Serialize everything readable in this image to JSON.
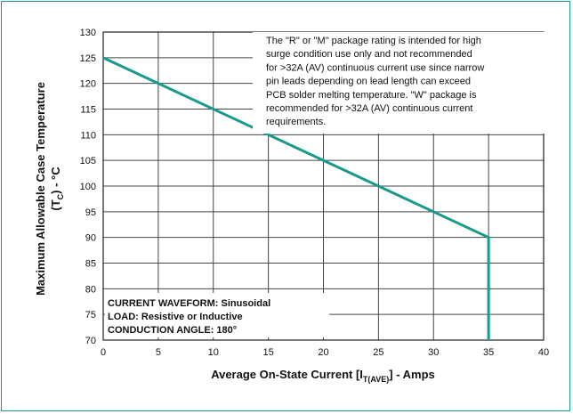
{
  "chart_data": {
    "type": "line",
    "xlabel_main": "Average On-State Current [I",
    "xlabel_sub": "T(AVE)",
    "xlabel_tail": "] - Amps",
    "ylabel_line1": "Maximum Allowable Case Temperature",
    "ylabel_line2_pre": "(T",
    "ylabel_line2_sub": "C",
    "ylabel_line2_post": ") - °C",
    "xlim": [
      0,
      40
    ],
    "ylim": [
      70,
      130
    ],
    "x_ticks": [
      0,
      5,
      10,
      15,
      20,
      25,
      30,
      35,
      40
    ],
    "y_ticks": [
      70,
      75,
      80,
      85,
      90,
      95,
      100,
      105,
      110,
      115,
      120,
      125,
      130
    ],
    "grid": true,
    "series": [
      {
        "color": "#1a9a8a",
        "x": [
          0,
          35,
          35
        ],
        "y": [
          125,
          90,
          70
        ]
      }
    ],
    "annotation_lines": [
      "The \"R\" or \"M\" package rating is intended for high",
      "surge condition use only and not recommended",
      "for >32A (AV) continuous current use since narrow",
      "pin leads depending on lead length can exceed",
      "PCB solder melting temperature. \"W\" package is",
      "recommended for >32A (AV) continuous current",
      "requirements."
    ],
    "conditions": [
      "CURRENT WAVEFORM: Sinusoidal",
      "LOAD: Resistive or Inductive",
      "CONDUCTION ANGLE: 180°"
    ]
  }
}
